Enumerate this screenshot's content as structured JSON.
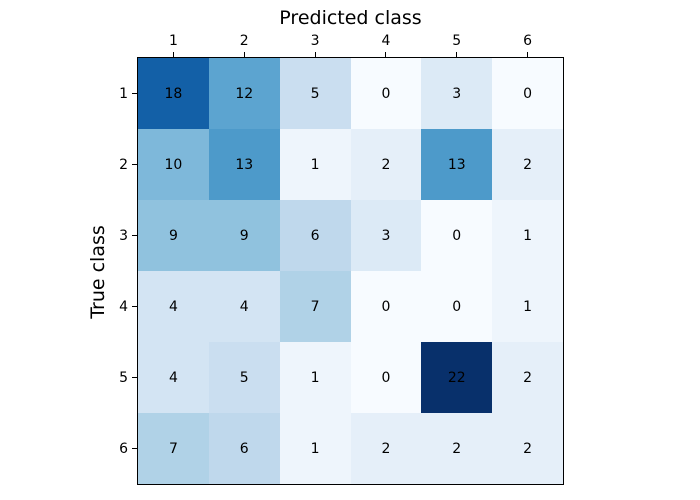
{
  "figure": {
    "background": "#ffffff",
    "frame_color": "#000000",
    "text_color": "#000000"
  },
  "chart_data": {
    "type": "heatmap",
    "title": "Predicted class",
    "xlabel": "Predicted class",
    "ylabel": "True class",
    "x_tick_labels": [
      "1",
      "2",
      "3",
      "4",
      "5",
      "6"
    ],
    "y_tick_labels": [
      "1",
      "2",
      "3",
      "4",
      "5",
      "6"
    ],
    "x_tick_side": "top",
    "y_tick_side": "left",
    "grid": false,
    "legend": "none",
    "rows": [
      [
        18,
        12,
        5,
        0,
        3,
        0
      ],
      [
        10,
        13,
        1,
        2,
        13,
        2
      ],
      [
        9,
        9,
        6,
        3,
        0,
        1
      ],
      [
        4,
        4,
        7,
        0,
        0,
        1
      ],
      [
        4,
        5,
        1,
        0,
        22,
        2
      ],
      [
        7,
        6,
        1,
        2,
        2,
        2
      ]
    ],
    "vmin": 0,
    "vmax": 22,
    "colormap_name": "Blues",
    "colormap_stops": [
      "#f7fbff",
      "#deebf7",
      "#c6dbef",
      "#9ecae1",
      "#6baed6",
      "#4292c6",
      "#2171b5",
      "#08519c",
      "#08306b"
    ],
    "cell_text_color": "#000000"
  }
}
